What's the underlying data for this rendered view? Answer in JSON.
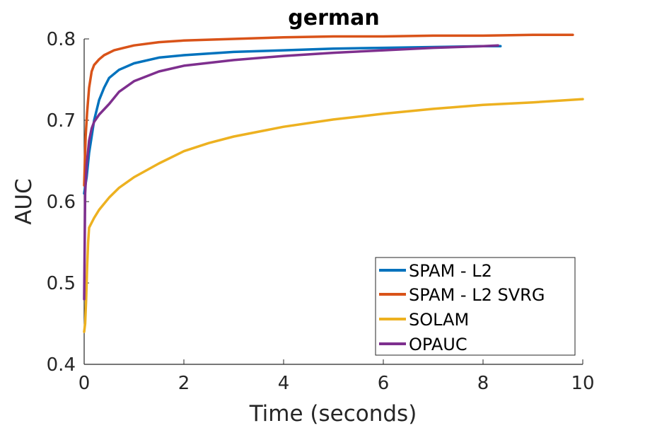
{
  "chart_data": {
    "type": "line",
    "title": "german",
    "xlabel": "Time (seconds)",
    "ylabel": "AUC",
    "xlim": [
      0,
      10
    ],
    "ylim": [
      0.4,
      0.8
    ],
    "xticks": [
      0,
      2,
      4,
      6,
      8,
      10
    ],
    "yticks": [
      0.4,
      0.5,
      0.6,
      0.7,
      0.8
    ],
    "xtick_labels": [
      "0",
      "2",
      "4",
      "6",
      "8",
      "10"
    ],
    "ytick_labels": [
      "0.4",
      "0.5",
      "0.6",
      "0.7",
      "0.8"
    ],
    "grid": false,
    "legend_position": "bottom-right",
    "series": [
      {
        "name": "SPAM - L2",
        "color": "#0072BD",
        "x": [
          0.0,
          0.05,
          0.1,
          0.15,
          0.2,
          0.3,
          0.4,
          0.5,
          0.7,
          1.0,
          1.5,
          2.0,
          3.0,
          4.0,
          5.0,
          6.0,
          7.0,
          8.0,
          8.35
        ],
        "y": [
          0.61,
          0.63,
          0.66,
          0.68,
          0.7,
          0.725,
          0.74,
          0.752,
          0.762,
          0.77,
          0.777,
          0.78,
          0.784,
          0.786,
          0.788,
          0.789,
          0.79,
          0.791,
          0.791
        ]
      },
      {
        "name": "SPAM - L2 SVRG",
        "color": "#D95319",
        "x": [
          0.0,
          0.03,
          0.06,
          0.1,
          0.15,
          0.2,
          0.3,
          0.4,
          0.6,
          0.8,
          1.0,
          1.5,
          2.0,
          3.0,
          4.0,
          5.0,
          6.0,
          7.0,
          8.0,
          9.0,
          9.8
        ],
        "y": [
          0.62,
          0.68,
          0.71,
          0.74,
          0.76,
          0.768,
          0.775,
          0.78,
          0.786,
          0.789,
          0.792,
          0.796,
          0.798,
          0.8,
          0.802,
          0.803,
          0.803,
          0.804,
          0.804,
          0.805,
          0.805
        ]
      },
      {
        "name": "SOLAM",
        "color": "#EDB120",
        "x": [
          0.0,
          0.02,
          0.04,
          0.06,
          0.08,
          0.1,
          0.2,
          0.3,
          0.5,
          0.7,
          1.0,
          1.5,
          2.0,
          2.5,
          3.0,
          4.0,
          5.0,
          6.0,
          7.0,
          8.0,
          9.0,
          10.0
        ],
        "y": [
          0.44,
          0.45,
          0.48,
          0.52,
          0.55,
          0.568,
          0.58,
          0.59,
          0.605,
          0.617,
          0.63,
          0.647,
          0.662,
          0.672,
          0.68,
          0.692,
          0.701,
          0.708,
          0.714,
          0.719,
          0.722,
          0.726
        ]
      },
      {
        "name": "OPAUC",
        "color": "#7E2F8E",
        "x": [
          0.0,
          0.02,
          0.05,
          0.1,
          0.15,
          0.2,
          0.3,
          0.5,
          0.7,
          1.0,
          1.5,
          2.0,
          3.0,
          4.0,
          5.0,
          6.0,
          7.0,
          8.0,
          8.3
        ],
        "y": [
          0.48,
          0.61,
          0.645,
          0.675,
          0.69,
          0.698,
          0.707,
          0.72,
          0.735,
          0.748,
          0.76,
          0.767,
          0.774,
          0.779,
          0.783,
          0.786,
          0.789,
          0.791,
          0.792
        ]
      }
    ]
  }
}
